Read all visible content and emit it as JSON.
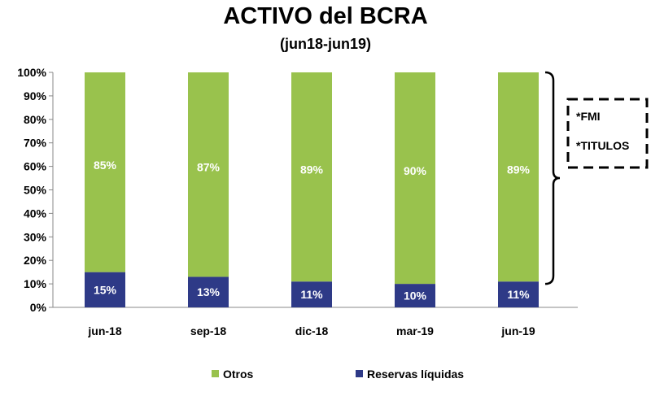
{
  "chart_data": {
    "type": "bar",
    "stacked": true,
    "title": "ACTIVO del BCRA",
    "subtitle": "(jun18-jun19)",
    "categories": [
      "jun-18",
      "sep-18",
      "dic-18",
      "mar-19",
      "jun-19"
    ],
    "series": [
      {
        "name": "Reservas líquidas",
        "values": [
          15,
          13,
          11,
          10,
          11
        ],
        "labels": [
          "15%",
          "13%",
          "11%",
          "10%",
          "11%"
        ],
        "color": "#2e3a87"
      },
      {
        "name": "Otros",
        "values": [
          85,
          87,
          89,
          90,
          89
        ],
        "labels": [
          "85%",
          "87%",
          "89%",
          "90%",
          "89%"
        ],
        "color": "#99c24d"
      }
    ],
    "ylim": [
      0,
      100
    ],
    "yticks": [
      "0%",
      "10%",
      "20%",
      "30%",
      "40%",
      "50%",
      "60%",
      "70%",
      "80%",
      "90%",
      "100%"
    ],
    "legend": {
      "position": "bottom",
      "order": [
        "Otros",
        "Reservas líquidas"
      ]
    },
    "grid": false,
    "annotation": {
      "items": [
        "*FMI",
        "*TITULOS"
      ],
      "brace_range": [
        10,
        100
      ]
    }
  }
}
